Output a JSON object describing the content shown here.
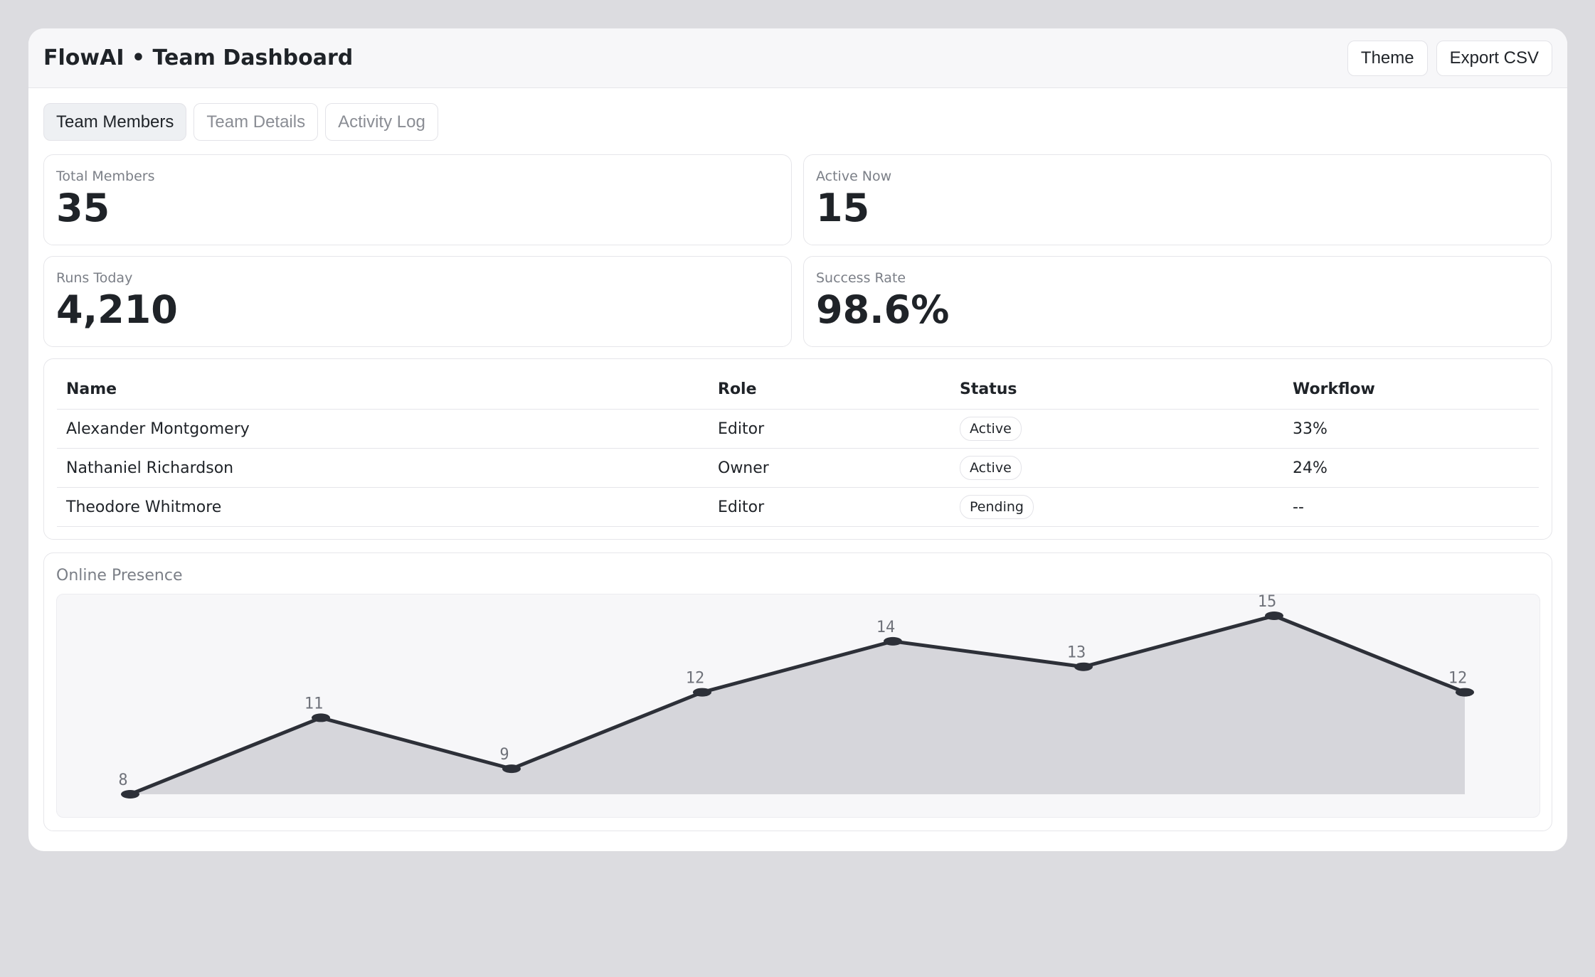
{
  "header": {
    "title": "FlowAI • Team Dashboard",
    "actions": [
      "Theme",
      "Export CSV"
    ]
  },
  "tabs": [
    {
      "label": "Team Members",
      "active": true
    },
    {
      "label": "Team Details",
      "active": false
    },
    {
      "label": "Activity Log",
      "active": false
    }
  ],
  "stats": [
    {
      "label": "Total Members",
      "value": "35"
    },
    {
      "label": "Active Now",
      "value": "15"
    },
    {
      "label": "Runs Today",
      "value": "4,210"
    },
    {
      "label": "Success Rate",
      "value": "98.6%"
    }
  ],
  "table": {
    "columns": [
      "Name",
      "Role",
      "Status",
      "Workflow"
    ],
    "rows": [
      {
        "name": "Alexander Montgomery",
        "role": "Editor",
        "status": "Active",
        "workflow": "33%"
      },
      {
        "name": "Nathaniel Richardson",
        "role": "Owner",
        "status": "Active",
        "workflow": "24%"
      },
      {
        "name": "Theodore Whitmore",
        "role": "Editor",
        "status": "Pending",
        "workflow": "--"
      }
    ]
  },
  "chart_title": "Online Presence",
  "chart_data": {
    "type": "area",
    "values": [
      8,
      11,
      9,
      12,
      14,
      13,
      15,
      12
    ],
    "title": "",
    "xlabel": "",
    "ylabel": "",
    "ylim": [
      8,
      15
    ],
    "grid": false,
    "line_color": "#2d3038",
    "fill_color": "#d6d6db"
  }
}
